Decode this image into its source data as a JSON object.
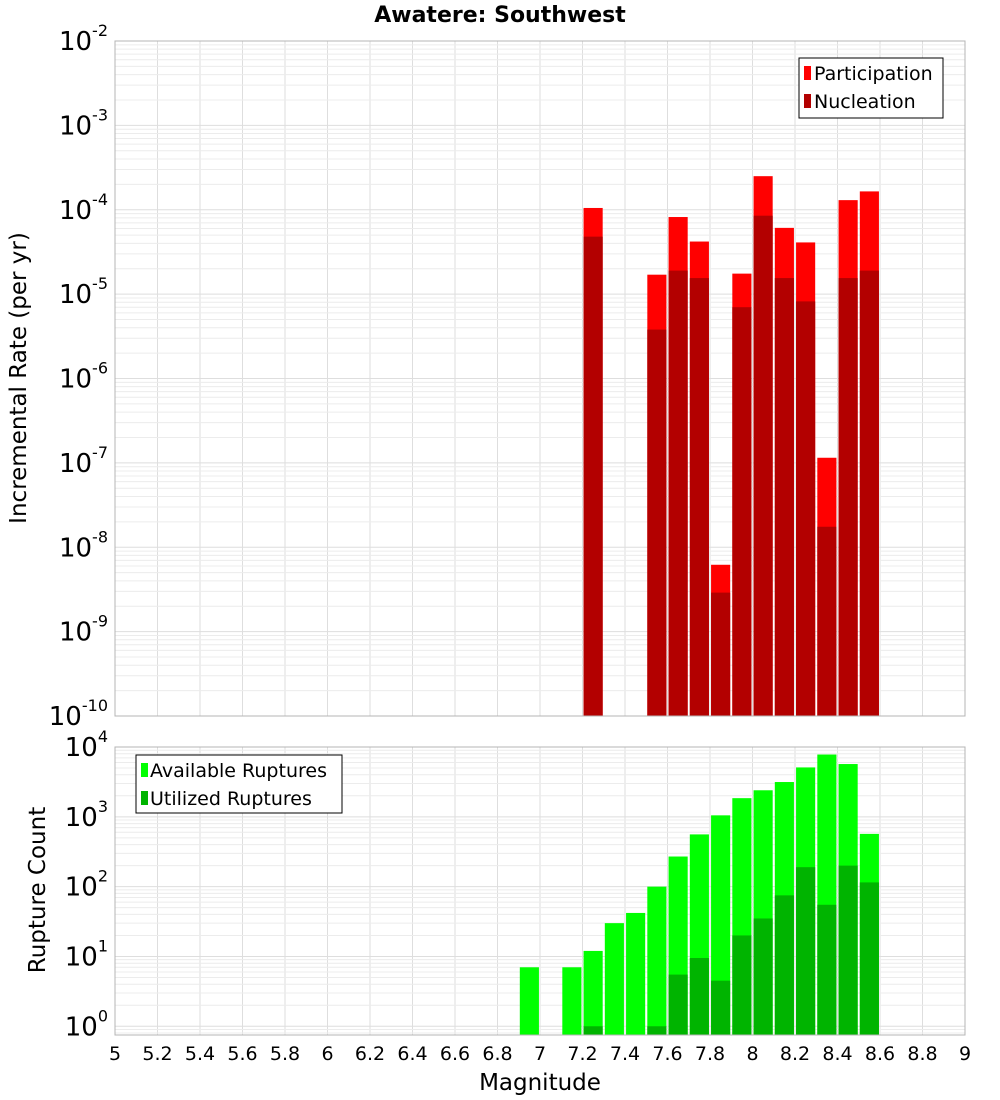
{
  "chart_data": [
    {
      "type": "bar",
      "title": "Awatere: Southwest",
      "xlabel": "",
      "ylabel": "Incremental Rate (per yr)",
      "yscale": "log",
      "ylim": [
        1e-10,
        0.01
      ],
      "xlim": [
        5,
        9
      ],
      "y_ticks": [
        {
          "base": "10",
          "exp": "-10"
        },
        {
          "base": "10",
          "exp": "-9"
        },
        {
          "base": "10",
          "exp": "-8"
        },
        {
          "base": "10",
          "exp": "-7"
        },
        {
          "base": "10",
          "exp": "-6"
        },
        {
          "base": "10",
          "exp": "-5"
        },
        {
          "base": "10",
          "exp": "-4"
        },
        {
          "base": "10",
          "exp": "-3"
        },
        {
          "base": "10",
          "exp": "-2"
        }
      ],
      "grid": true,
      "legend_position": "top-right",
      "x": [
        7.25,
        7.55,
        7.65,
        7.75,
        7.85,
        7.95,
        8.05,
        8.15,
        8.25,
        8.35,
        8.45,
        8.55
      ],
      "series": [
        {
          "name": "Participation",
          "color": "#ff0000",
          "values": [
            0.000105,
            1.7e-05,
            8.2e-05,
            4.2e-05,
            6.2e-09,
            1.75e-05,
            0.00025,
            6.1e-05,
            4.1e-05,
            1.15e-07,
            0.00013,
            0.000165
          ]
        },
        {
          "name": "Nucleation",
          "color": "#b30000",
          "values": [
            4.8e-05,
            3.8e-06,
            1.9e-05,
            1.55e-05,
            2.9e-09,
            7e-06,
            8.5e-05,
            1.55e-05,
            8.2e-06,
            1.75e-08,
            1.55e-05,
            1.9e-05
          ]
        }
      ]
    },
    {
      "type": "bar",
      "title": "",
      "xlabel": "Magnitude",
      "ylabel": "Rupture Count",
      "yscale": "log",
      "ylim": [
        0.75,
        10000
      ],
      "xlim": [
        5,
        9
      ],
      "y_ticks": [
        {
          "base": "10",
          "exp": "0"
        },
        {
          "base": "10",
          "exp": "1"
        },
        {
          "base": "10",
          "exp": "2"
        },
        {
          "base": "10",
          "exp": "3"
        },
        {
          "base": "10",
          "exp": "4"
        }
      ],
      "x_tick_labels": [
        "5",
        "5.2",
        "5.4",
        "5.6",
        "5.8",
        "6",
        "6.2",
        "6.4",
        "6.6",
        "6.8",
        "7",
        "7.2",
        "7.4",
        "7.6",
        "7.8",
        "8",
        "8.2",
        "8.4",
        "8.6",
        "8.8",
        "9"
      ],
      "grid": true,
      "legend_position": "top-left",
      "x": [
        6.95,
        7.15,
        7.25,
        7.35,
        7.45,
        7.55,
        7.65,
        7.75,
        7.85,
        7.95,
        8.05,
        8.15,
        8.25,
        8.35,
        8.45,
        8.55
      ],
      "series": [
        {
          "name": "Available Ruptures",
          "color": "#00ff00",
          "values": [
            7,
            7,
            12,
            30,
            42,
            100,
            270,
            560,
            1050,
            1850,
            2400,
            3150,
            5100,
            7800,
            5700,
            570
          ]
        },
        {
          "name": "Utilized Ruptures",
          "color": "#00b400",
          "values": [
            0,
            0,
            1,
            0,
            0,
            1,
            5.5,
            9.5,
            4.5,
            20,
            35,
            75,
            190,
            55,
            200,
            115
          ]
        }
      ]
    }
  ]
}
